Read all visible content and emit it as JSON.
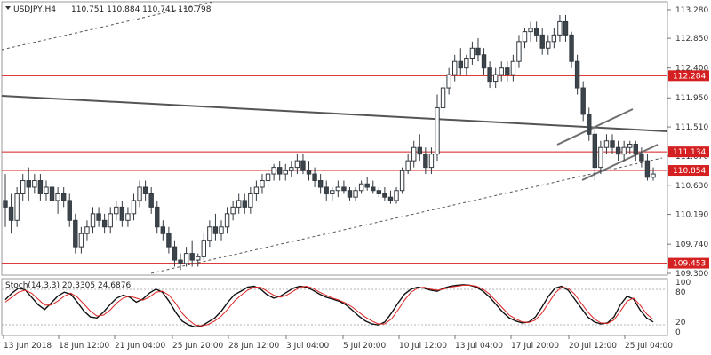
{
  "chart_data": {
    "type": "candlestick",
    "symbol_label": "USDJPY,H4",
    "ohlc_label": "110.751 110.884 110.741 110.798",
    "y_ticks": [
      "113.280",
      "112.850",
      "112.400",
      "111.950",
      "111.510",
      "111.070",
      "110.630",
      "110.190",
      "109.740",
      "109.300"
    ],
    "ylim": [
      109.3,
      113.37
    ],
    "x_ticks": [
      "13 Jun 2018",
      "18 Jun 12:00",
      "21 Jun 04:00",
      "25 Jun 20:00",
      "28 Jun 12:00",
      "3 Jul 04:00",
      "5 Jul 20:00",
      "10 Jul 12:00",
      "13 Jul 04:00",
      "17 Jul 20:00",
      "20 Jul 12:00",
      "25 Jul 04:00"
    ],
    "levels": [
      {
        "label": "112.284",
        "value": 112.284
      },
      {
        "label": "111.134",
        "value": 111.134
      },
      {
        "label": "110.854",
        "value": 110.854
      },
      {
        "label": "109.453",
        "value": 109.453
      }
    ],
    "candles": [
      [
        110.4,
        110.8,
        110.0,
        110.3
      ],
      [
        110.3,
        110.5,
        109.9,
        110.1
      ],
      [
        110.1,
        110.6,
        110.0,
        110.5
      ],
      [
        110.5,
        110.8,
        110.4,
        110.7
      ],
      [
        110.7,
        110.9,
        110.4,
        110.6
      ],
      [
        110.6,
        110.8,
        110.5,
        110.7
      ],
      [
        110.7,
        110.8,
        110.4,
        110.5
      ],
      [
        110.5,
        110.7,
        110.4,
        110.6
      ],
      [
        110.6,
        110.7,
        110.3,
        110.4
      ],
      [
        110.4,
        110.6,
        110.2,
        110.5
      ],
      [
        110.5,
        110.6,
        110.3,
        110.4
      ],
      [
        110.4,
        110.5,
        110.0,
        110.1
      ],
      [
        110.1,
        110.2,
        109.6,
        109.7
      ],
      [
        109.7,
        110.0,
        109.6,
        109.9
      ],
      [
        109.9,
        110.1,
        109.8,
        110.0
      ],
      [
        110.0,
        110.3,
        109.9,
        110.2
      ],
      [
        110.2,
        110.3,
        110.0,
        110.1
      ],
      [
        110.1,
        110.2,
        109.9,
        110.0
      ],
      [
        110.0,
        110.3,
        109.9,
        110.2
      ],
      [
        110.2,
        110.4,
        110.1,
        110.3
      ],
      [
        110.3,
        110.4,
        110.0,
        110.1
      ],
      [
        110.1,
        110.3,
        110.0,
        110.2
      ],
      [
        110.2,
        110.5,
        110.1,
        110.4
      ],
      [
        110.4,
        110.7,
        110.3,
        110.6
      ],
      [
        110.6,
        110.7,
        110.4,
        110.5
      ],
      [
        110.5,
        110.6,
        110.2,
        110.3
      ],
      [
        110.3,
        110.4,
        109.9,
        110.0
      ],
      [
        110.0,
        110.1,
        109.8,
        109.9
      ],
      [
        109.9,
        110.0,
        109.6,
        109.7
      ],
      [
        109.7,
        109.8,
        109.4,
        109.5
      ],
      [
        109.5,
        109.6,
        109.35,
        109.45
      ],
      [
        109.45,
        109.7,
        109.4,
        109.6
      ],
      [
        109.6,
        109.8,
        109.4,
        109.5
      ],
      [
        109.5,
        109.6,
        109.4,
        109.55
      ],
      [
        109.55,
        109.9,
        109.5,
        109.8
      ],
      [
        109.8,
        110.1,
        109.7,
        110.0
      ],
      [
        110.0,
        110.2,
        109.8,
        109.9
      ],
      [
        109.9,
        110.1,
        109.8,
        110.0
      ],
      [
        110.0,
        110.3,
        109.9,
        110.2
      ],
      [
        110.2,
        110.4,
        110.1,
        110.3
      ],
      [
        110.3,
        110.5,
        110.2,
        110.4
      ],
      [
        110.4,
        110.5,
        110.2,
        110.3
      ],
      [
        110.3,
        110.6,
        110.2,
        110.5
      ],
      [
        110.5,
        110.7,
        110.4,
        110.6
      ],
      [
        110.6,
        110.8,
        110.5,
        110.7
      ],
      [
        110.7,
        110.9,
        110.6,
        110.8
      ],
      [
        110.8,
        110.95,
        110.7,
        110.9
      ],
      [
        110.9,
        111.0,
        110.7,
        110.8
      ],
      [
        110.8,
        110.95,
        110.7,
        110.85
      ],
      [
        110.85,
        111.0,
        110.75,
        110.9
      ],
      [
        110.9,
        111.1,
        110.8,
        111.0
      ],
      [
        111.0,
        111.1,
        110.8,
        110.85
      ],
      [
        110.85,
        111.0,
        110.7,
        110.8
      ],
      [
        110.8,
        110.9,
        110.6,
        110.7
      ],
      [
        110.7,
        110.8,
        110.5,
        110.6
      ],
      [
        110.6,
        110.7,
        110.4,
        110.5
      ],
      [
        110.5,
        110.6,
        110.4,
        110.55
      ],
      [
        110.55,
        110.7,
        110.45,
        110.6
      ],
      [
        110.6,
        110.7,
        110.5,
        110.55
      ],
      [
        110.55,
        110.6,
        110.4,
        110.45
      ],
      [
        110.45,
        110.6,
        110.4,
        110.55
      ],
      [
        110.55,
        110.7,
        110.5,
        110.65
      ],
      [
        110.65,
        110.75,
        110.55,
        110.6
      ],
      [
        110.6,
        110.7,
        110.5,
        110.55
      ],
      [
        110.55,
        110.6,
        110.45,
        110.5
      ],
      [
        110.5,
        110.6,
        110.4,
        110.45
      ],
      [
        110.45,
        110.55,
        110.35,
        110.4
      ],
      [
        110.4,
        110.6,
        110.35,
        110.55
      ],
      [
        110.55,
        110.9,
        110.5,
        110.85
      ],
      [
        110.85,
        111.1,
        110.8,
        111.0
      ],
      [
        111.0,
        111.3,
        110.9,
        111.2
      ],
      [
        111.2,
        111.4,
        111.0,
        111.1
      ],
      [
        111.1,
        111.2,
        110.8,
        110.9
      ],
      [
        110.9,
        111.2,
        110.8,
        111.1
      ],
      [
        111.1,
        112.0,
        111.0,
        111.8
      ],
      [
        111.8,
        112.2,
        111.7,
        112.1
      ],
      [
        112.1,
        112.4,
        112.0,
        112.3
      ],
      [
        112.3,
        112.6,
        112.2,
        112.5
      ],
      [
        112.5,
        112.7,
        112.3,
        112.4
      ],
      [
        112.4,
        112.6,
        112.3,
        112.55
      ],
      [
        112.55,
        112.8,
        112.45,
        112.7
      ],
      [
        112.7,
        112.85,
        112.5,
        112.6
      ],
      [
        112.6,
        112.7,
        112.3,
        112.4
      ],
      [
        112.4,
        112.5,
        112.1,
        112.2
      ],
      [
        112.2,
        112.4,
        112.1,
        112.3
      ],
      [
        112.3,
        112.5,
        112.2,
        112.4
      ],
      [
        112.4,
        112.5,
        112.2,
        112.3
      ],
      [
        112.3,
        112.6,
        112.2,
        112.5
      ],
      [
        112.5,
        112.9,
        112.4,
        112.8
      ],
      [
        112.8,
        113.0,
        112.7,
        112.95
      ],
      [
        112.95,
        113.1,
        112.8,
        113.0
      ],
      [
        113.0,
        113.1,
        112.8,
        112.9
      ],
      [
        112.9,
        113.0,
        112.6,
        112.7
      ],
      [
        112.7,
        112.9,
        112.6,
        112.8
      ],
      [
        112.8,
        113.0,
        112.7,
        112.9
      ],
      [
        112.9,
        113.2,
        112.8,
        113.1
      ],
      [
        113.1,
        113.2,
        112.8,
        112.9
      ],
      [
        112.9,
        112.95,
        112.4,
        112.5
      ],
      [
        112.5,
        112.6,
        112.0,
        112.1
      ],
      [
        112.1,
        112.2,
        111.6,
        111.7
      ],
      [
        111.7,
        111.8,
        111.3,
        111.4
      ],
      [
        111.4,
        111.5,
        110.7,
        110.9
      ],
      [
        110.9,
        111.3,
        110.8,
        111.2
      ],
      [
        111.2,
        111.4,
        111.1,
        111.3
      ],
      [
        111.3,
        111.4,
        111.1,
        111.2
      ],
      [
        111.2,
        111.3,
        111.0,
        111.1
      ],
      [
        111.1,
        111.3,
        111.0,
        111.2
      ],
      [
        111.2,
        111.3,
        111.1,
        111.25
      ],
      [
        111.25,
        111.3,
        111.0,
        111.1
      ],
      [
        111.1,
        111.2,
        110.9,
        111.0
      ],
      [
        111.0,
        111.1,
        110.7,
        110.75
      ],
      [
        110.75,
        110.9,
        110.7,
        110.8
      ]
    ],
    "stochastic": {
      "label": "Stoch(14,3,3) 20.3305 24.6876",
      "ylim": [
        0,
        100
      ],
      "y_ticks": [
        "100",
        "80",
        "20",
        "0"
      ],
      "k": [
        65,
        78,
        88,
        85,
        70,
        55,
        45,
        58,
        72,
        80,
        76,
        60,
        42,
        30,
        28,
        40,
        55,
        68,
        74,
        70,
        60,
        66,
        78,
        86,
        80,
        62,
        40,
        22,
        14,
        10,
        12,
        20,
        28,
        42,
        60,
        75,
        82,
        90,
        92,
        86,
        75,
        68,
        72,
        80,
        88,
        92,
        90,
        84,
        76,
        70,
        66,
        62,
        55,
        44,
        32,
        22,
        16,
        14,
        20,
        38,
        58,
        76,
        86,
        90,
        88,
        84,
        82,
        88,
        92,
        94,
        95,
        94,
        90,
        82,
        70,
        55,
        40,
        28,
        22,
        18,
        20,
        30,
        50,
        72,
        88,
        92,
        84,
        66,
        48,
        30,
        20,
        16,
        18,
        30,
        55,
        72,
        66,
        44,
        28,
        20
      ],
      "d": [
        60,
        70,
        80,
        84,
        78,
        66,
        54,
        54,
        62,
        72,
        78,
        70,
        56,
        42,
        32,
        34,
        44,
        58,
        68,
        72,
        68,
        64,
        70,
        80,
        82,
        74,
        58,
        38,
        24,
        14,
        12,
        15,
        22,
        32,
        46,
        62,
        74,
        84,
        90,
        90,
        82,
        74,
        70,
        74,
        82,
        90,
        92,
        88,
        80,
        74,
        68,
        64,
        58,
        50,
        40,
        30,
        22,
        16,
        16,
        26,
        44,
        64,
        80,
        88,
        90,
        86,
        84,
        86,
        90,
        92,
        94,
        94,
        92,
        86,
        76,
        62,
        48,
        34,
        26,
        20,
        19,
        24,
        38,
        58,
        78,
        90,
        88,
        76,
        58,
        40,
        26,
        18,
        17,
        24,
        42,
        62,
        68,
        54,
        36,
        25
      ]
    }
  }
}
